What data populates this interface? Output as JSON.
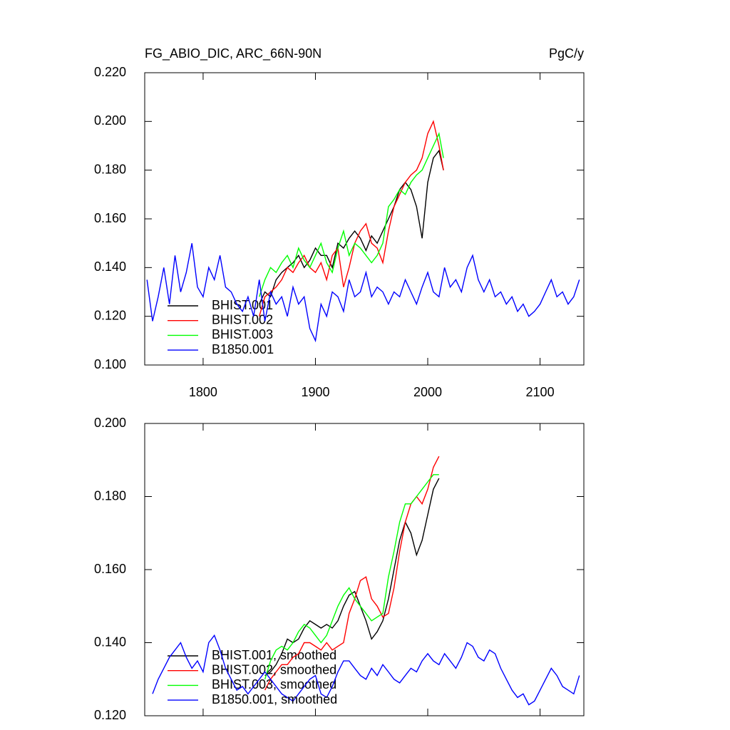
{
  "chart_data": [
    {
      "type": "line",
      "title": "FG_ABIO_DIC, ARC_66N-90N",
      "units": "PgC/y",
      "xlim": [
        1748,
        2139
      ],
      "xticks": [
        1800,
        1900,
        2000,
        2100
      ],
      "ylim": [
        0.1,
        0.22
      ],
      "yticks": [
        {
          "value": 0.1,
          "label": "0.100"
        },
        {
          "value": 0.12,
          "label": "0.120"
        },
        {
          "value": 0.14,
          "label": "0.140"
        },
        {
          "value": 0.16,
          "label": "0.160"
        },
        {
          "value": 0.18,
          "label": "0.180"
        },
        {
          "value": 0.2,
          "label": "0.200"
        },
        {
          "value": 0.22,
          "label": "0.220"
        }
      ],
      "series": [
        {
          "name": "BHIST.001",
          "color": "#000000",
          "x": [
            1850,
            1855,
            1860,
            1865,
            1870,
            1875,
            1880,
            1885,
            1890,
            1895,
            1900,
            1905,
            1910,
            1915,
            1920,
            1925,
            1930,
            1935,
            1940,
            1945,
            1950,
            1955,
            1960,
            1965,
            1970,
            1975,
            1980,
            1985,
            1990,
            1995,
            2000,
            2005,
            2010,
            2014
          ],
          "values": [
            0.125,
            0.13,
            0.128,
            0.135,
            0.138,
            0.14,
            0.142,
            0.145,
            0.14,
            0.143,
            0.148,
            0.145,
            0.145,
            0.14,
            0.15,
            0.148,
            0.152,
            0.155,
            0.152,
            0.147,
            0.153,
            0.15,
            0.155,
            0.16,
            0.165,
            0.172,
            0.175,
            0.172,
            0.165,
            0.152,
            0.175,
            0.185,
            0.188,
            0.18
          ]
        },
        {
          "name": "BHIST.002",
          "color": "#ff0000",
          "x": [
            1850,
            1855,
            1860,
            1865,
            1870,
            1875,
            1880,
            1885,
            1890,
            1895,
            1900,
            1905,
            1910,
            1915,
            1920,
            1925,
            1930,
            1935,
            1940,
            1945,
            1950,
            1955,
            1960,
            1965,
            1970,
            1975,
            1980,
            1985,
            1990,
            1995,
            2000,
            2005,
            2010,
            2014
          ],
          "values": [
            0.12,
            0.128,
            0.13,
            0.132,
            0.135,
            0.14,
            0.138,
            0.142,
            0.145,
            0.14,
            0.138,
            0.142,
            0.135,
            0.145,
            0.148,
            0.132,
            0.14,
            0.15,
            0.155,
            0.158,
            0.15,
            0.148,
            0.142,
            0.155,
            0.165,
            0.17,
            0.175,
            0.178,
            0.18,
            0.185,
            0.195,
            0.2,
            0.19,
            0.18
          ]
        },
        {
          "name": "BHIST.003",
          "color": "#00ff00",
          "x": [
            1850,
            1855,
            1860,
            1865,
            1870,
            1875,
            1880,
            1885,
            1890,
            1895,
            1900,
            1905,
            1910,
            1915,
            1920,
            1925,
            1930,
            1935,
            1940,
            1945,
            1950,
            1955,
            1960,
            1965,
            1970,
            1975,
            1980,
            1985,
            1990,
            1995,
            2000,
            2005,
            2010,
            2014
          ],
          "values": [
            0.128,
            0.135,
            0.14,
            0.138,
            0.142,
            0.145,
            0.14,
            0.148,
            0.143,
            0.14,
            0.145,
            0.15,
            0.142,
            0.138,
            0.148,
            0.155,
            0.145,
            0.15,
            0.148,
            0.145,
            0.142,
            0.145,
            0.15,
            0.165,
            0.168,
            0.172,
            0.17,
            0.175,
            0.178,
            0.18,
            0.185,
            0.19,
            0.195,
            0.185
          ]
        },
        {
          "name": "B1850.001",
          "color": "#0000ff",
          "x": [
            1750,
            1755,
            1760,
            1765,
            1770,
            1775,
            1780,
            1785,
            1790,
            1795,
            1800,
            1805,
            1810,
            1815,
            1820,
            1825,
            1830,
            1835,
            1840,
            1845,
            1850,
            1855,
            1860,
            1865,
            1870,
            1875,
            1880,
            1885,
            1890,
            1895,
            1900,
            1905,
            1910,
            1915,
            1920,
            1925,
            1930,
            1935,
            1940,
            1945,
            1950,
            1955,
            1960,
            1965,
            1970,
            1975,
            1980,
            1985,
            1990,
            1995,
            2000,
            2005,
            2010,
            2015,
            2020,
            2025,
            2030,
            2035,
            2040,
            2045,
            2050,
            2055,
            2060,
            2065,
            2070,
            2075,
            2080,
            2085,
            2090,
            2095,
            2100,
            2105,
            2110,
            2115,
            2120,
            2125,
            2130,
            2135
          ],
          "values": [
            0.135,
            0.118,
            0.128,
            0.14,
            0.125,
            0.145,
            0.13,
            0.138,
            0.15,
            0.132,
            0.128,
            0.14,
            0.135,
            0.145,
            0.132,
            0.13,
            0.125,
            0.122,
            0.128,
            0.12,
            0.135,
            0.118,
            0.13,
            0.125,
            0.128,
            0.12,
            0.132,
            0.125,
            0.128,
            0.115,
            0.11,
            0.125,
            0.12,
            0.13,
            0.128,
            0.122,
            0.135,
            0.128,
            0.13,
            0.138,
            0.128,
            0.132,
            0.13,
            0.125,
            0.13,
            0.128,
            0.135,
            0.13,
            0.125,
            0.132,
            0.138,
            0.13,
            0.128,
            0.14,
            0.132,
            0.135,
            0.13,
            0.14,
            0.145,
            0.135,
            0.13,
            0.135,
            0.128,
            0.13,
            0.125,
            0.128,
            0.122,
            0.125,
            0.12,
            0.122,
            0.125,
            0.13,
            0.135,
            0.128,
            0.13,
            0.125,
            0.128,
            0.135
          ]
        }
      ]
    },
    {
      "type": "line",
      "xlim": [
        1748,
        2139
      ],
      "xticks": [
        1800,
        1900,
        2000,
        2100
      ],
      "ylim": [
        0.12,
        0.2
      ],
      "yticks": [
        {
          "value": 0.12,
          "label": "0.120"
        },
        {
          "value": 0.14,
          "label": "0.140"
        },
        {
          "value": 0.16,
          "label": "0.160"
        },
        {
          "value": 0.18,
          "label": "0.180"
        },
        {
          "value": 0.2,
          "label": "0.200"
        }
      ],
      "series": [
        {
          "name": "BHIST.001, smoothed",
          "color": "#000000",
          "x": [
            1855,
            1860,
            1865,
            1870,
            1875,
            1880,
            1885,
            1890,
            1895,
            1900,
            1905,
            1910,
            1915,
            1920,
            1925,
            1930,
            1935,
            1940,
            1945,
            1950,
            1955,
            1960,
            1965,
            1970,
            1975,
            1980,
            1985,
            1990,
            1995,
            2000,
            2005,
            2010
          ],
          "values": [
            0.131,
            0.132,
            0.134,
            0.137,
            0.141,
            0.14,
            0.141,
            0.144,
            0.146,
            0.145,
            0.144,
            0.145,
            0.144,
            0.146,
            0.15,
            0.153,
            0.154,
            0.15,
            0.146,
            0.141,
            0.143,
            0.146,
            0.152,
            0.16,
            0.168,
            0.173,
            0.17,
            0.164,
            0.168,
            0.175,
            0.182,
            0.185
          ]
        },
        {
          "name": "BHIST.002, smoothed",
          "color": "#ff0000",
          "x": [
            1855,
            1860,
            1865,
            1870,
            1875,
            1880,
            1885,
            1890,
            1895,
            1900,
            1905,
            1910,
            1915,
            1920,
            1925,
            1930,
            1935,
            1940,
            1945,
            1950,
            1955,
            1960,
            1965,
            1970,
            1975,
            1980,
            1985,
            1990,
            1995,
            2000,
            2005,
            2010
          ],
          "values": [
            0.127,
            0.13,
            0.132,
            0.134,
            0.134,
            0.136,
            0.137,
            0.14,
            0.14,
            0.139,
            0.138,
            0.14,
            0.138,
            0.139,
            0.14,
            0.148,
            0.152,
            0.157,
            0.158,
            0.152,
            0.15,
            0.147,
            0.148,
            0.155,
            0.165,
            0.173,
            0.178,
            0.18,
            0.178,
            0.182,
            0.188,
            0.191
          ]
        },
        {
          "name": "BHIST.003, smoothed",
          "color": "#00ff00",
          "x": [
            1855,
            1860,
            1865,
            1870,
            1875,
            1880,
            1885,
            1890,
            1895,
            1900,
            1905,
            1910,
            1915,
            1920,
            1925,
            1930,
            1935,
            1940,
            1945,
            1950,
            1955,
            1960,
            1965,
            1970,
            1975,
            1980,
            1985,
            1990,
            1995,
            2000,
            2005,
            2010
          ],
          "values": [
            0.13,
            0.135,
            0.138,
            0.139,
            0.138,
            0.14,
            0.143,
            0.145,
            0.144,
            0.142,
            0.14,
            0.142,
            0.146,
            0.15,
            0.153,
            0.155,
            0.152,
            0.15,
            0.148,
            0.146,
            0.147,
            0.148,
            0.158,
            0.165,
            0.173,
            0.178,
            0.178,
            0.18,
            0.182,
            0.184,
            0.186,
            0.186
          ]
        },
        {
          "name": "B1850.001, smoothed",
          "color": "#0000ff",
          "x": [
            1755,
            1760,
            1765,
            1770,
            1775,
            1780,
            1785,
            1790,
            1795,
            1800,
            1805,
            1810,
            1815,
            1820,
            1825,
            1830,
            1835,
            1840,
            1845,
            1850,
            1855,
            1860,
            1865,
            1870,
            1875,
            1880,
            1885,
            1890,
            1895,
            1900,
            1905,
            1910,
            1915,
            1920,
            1925,
            1930,
            1935,
            1940,
            1945,
            1950,
            1955,
            1960,
            1965,
            1970,
            1975,
            1980,
            1985,
            1990,
            1995,
            2000,
            2005,
            2010,
            2015,
            2020,
            2025,
            2030,
            2035,
            2040,
            2045,
            2050,
            2055,
            2060,
            2065,
            2070,
            2075,
            2080,
            2085,
            2090,
            2095,
            2100,
            2105,
            2110,
            2115,
            2120,
            2125,
            2130,
            2135
          ],
          "values": [
            0.126,
            0.13,
            0.133,
            0.136,
            0.138,
            0.14,
            0.136,
            0.133,
            0.135,
            0.132,
            0.14,
            0.142,
            0.138,
            0.133,
            0.13,
            0.127,
            0.128,
            0.126,
            0.128,
            0.13,
            0.132,
            0.13,
            0.128,
            0.126,
            0.125,
            0.124,
            0.126,
            0.128,
            0.13,
            0.131,
            0.126,
            0.125,
            0.128,
            0.132,
            0.135,
            0.135,
            0.133,
            0.131,
            0.13,
            0.133,
            0.131,
            0.134,
            0.132,
            0.13,
            0.129,
            0.131,
            0.133,
            0.132,
            0.135,
            0.137,
            0.135,
            0.134,
            0.137,
            0.135,
            0.133,
            0.136,
            0.14,
            0.139,
            0.136,
            0.135,
            0.138,
            0.137,
            0.133,
            0.13,
            0.127,
            0.125,
            0.126,
            0.123,
            0.124,
            0.127,
            0.13,
            0.133,
            0.131,
            0.128,
            0.127,
            0.126,
            0.131
          ]
        }
      ]
    }
  ]
}
